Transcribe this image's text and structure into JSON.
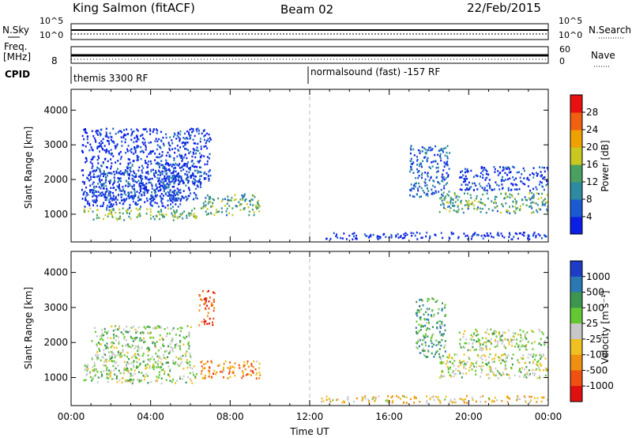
{
  "header": {
    "title": "King Salmon (fitACF)",
    "beam": "Beam 02",
    "date": "22/Feb/2015"
  },
  "noise_panel": {
    "left_label": "N.Sky",
    "right_label": "N.Search",
    "ticks": [
      "10^5",
      "10^0"
    ]
  },
  "freq_panel": {
    "left_label_top": "Freq.",
    "left_label_bottom": "[MHz]",
    "left_tick": "8",
    "right_label": "Nave",
    "right_ticks": [
      "60",
      "0"
    ]
  },
  "cpid_panel": {
    "label": "CPID",
    "modes": [
      {
        "text": "themis 3300 RF",
        "start_hour": 0,
        "end_hour": 12
      },
      {
        "text": "normalsound (fast) -157 RF",
        "start_hour": 12,
        "end_hour": 24
      }
    ]
  },
  "chart_data": [
    {
      "type": "heatmap",
      "name": "power",
      "xlabel": "",
      "ylabel": "Slant Range [km]",
      "x_range_hours": [
        0,
        24
      ],
      "ylim": [
        200,
        4600
      ],
      "y_ticks": [
        "1000",
        "2000",
        "3000",
        "4000"
      ],
      "colorbar": {
        "label": "Power [dB]",
        "ticks": [
          "4",
          "8",
          "12",
          "16",
          "20",
          "24",
          "28"
        ],
        "colors": [
          "#0a1ee6",
          "#1c5ad2",
          "#2d8aa0",
          "#4aa060",
          "#c8c820",
          "#f0a000",
          "#f06010",
          "#e81010"
        ]
      },
      "echo_regions": [
        {
          "t0": 0.6,
          "t1": 6.3,
          "r0": 850,
          "r1": 1200,
          "level": 0.45
        },
        {
          "t0": 0.5,
          "t1": 5.5,
          "r0": 1200,
          "r1": 2300,
          "level": 0.1
        },
        {
          "t0": 1.0,
          "t1": 6.5,
          "r0": 1400,
          "r1": 2500,
          "level": 0.15
        },
        {
          "t0": 4.5,
          "t1": 7.0,
          "r0": 1900,
          "r1": 3500,
          "level": 0.1
        },
        {
          "t0": 6.5,
          "t1": 9.5,
          "r0": 1000,
          "r1": 1600,
          "level": 0.4
        },
        {
          "t0": 0.5,
          "t1": 4.5,
          "r0": 2500,
          "r1": 3500,
          "level": 0.05
        },
        {
          "t0": 17.0,
          "t1": 19.0,
          "r0": 1500,
          "r1": 3000,
          "level": 0.2
        },
        {
          "t0": 18.5,
          "t1": 24.0,
          "r0": 1050,
          "r1": 1650,
          "level": 0.4
        },
        {
          "t0": 19.5,
          "t1": 24.0,
          "r0": 1700,
          "r1": 2400,
          "level": 0.1
        },
        {
          "t0": 12.5,
          "t1": 24.0,
          "r0": 300,
          "r1": 500,
          "level": 0.05
        }
      ]
    },
    {
      "type": "heatmap",
      "name": "velocity",
      "xlabel": "Time UT",
      "ylabel": "Slant Range [km]",
      "x_range_hours": [
        0,
        24
      ],
      "x_ticks": [
        "00:00",
        "04:00",
        "08:00",
        "12:00",
        "16:00",
        "20:00",
        "00:00"
      ],
      "ylim": [
        200,
        4600
      ],
      "y_ticks": [
        "1000",
        "2000",
        "3000",
        "4000"
      ],
      "colorbar": {
        "label": "Velocity [m s⁻¹]",
        "ticks": [
          "1000",
          "500",
          "100",
          "25",
          "-25",
          "-100",
          "-500",
          "-1000"
        ],
        "colors": [
          "#1e3cc8",
          "#2a78b4",
          "#3c9650",
          "#64c832",
          "#c8c8c8",
          "#f0c020",
          "#f09010",
          "#f05010",
          "#e01010"
        ]
      },
      "echo_regions": [
        {
          "t0": 0.6,
          "t1": 6.3,
          "r0": 850,
          "r1": 1400,
          "level": 0.45
        },
        {
          "t0": 1.0,
          "t1": 6.0,
          "r0": 1400,
          "r1": 2500,
          "level": 0.42
        },
        {
          "t0": 6.5,
          "t1": 9.5,
          "r0": 1000,
          "r1": 1500,
          "level": 0.72
        },
        {
          "t0": 6.4,
          "t1": 7.2,
          "r0": 2500,
          "r1": 3500,
          "level": 0.85
        },
        {
          "t0": 17.3,
          "t1": 18.8,
          "r0": 1600,
          "r1": 3300,
          "level": 0.3
        },
        {
          "t0": 18.5,
          "t1": 24.0,
          "r0": 1000,
          "r1": 1700,
          "level": 0.47
        },
        {
          "t0": 19.5,
          "t1": 24.0,
          "r0": 1800,
          "r1": 2400,
          "level": 0.45
        },
        {
          "t0": 12.5,
          "t1": 24.0,
          "r0": 300,
          "r1": 500,
          "level": 0.6
        }
      ]
    }
  ]
}
